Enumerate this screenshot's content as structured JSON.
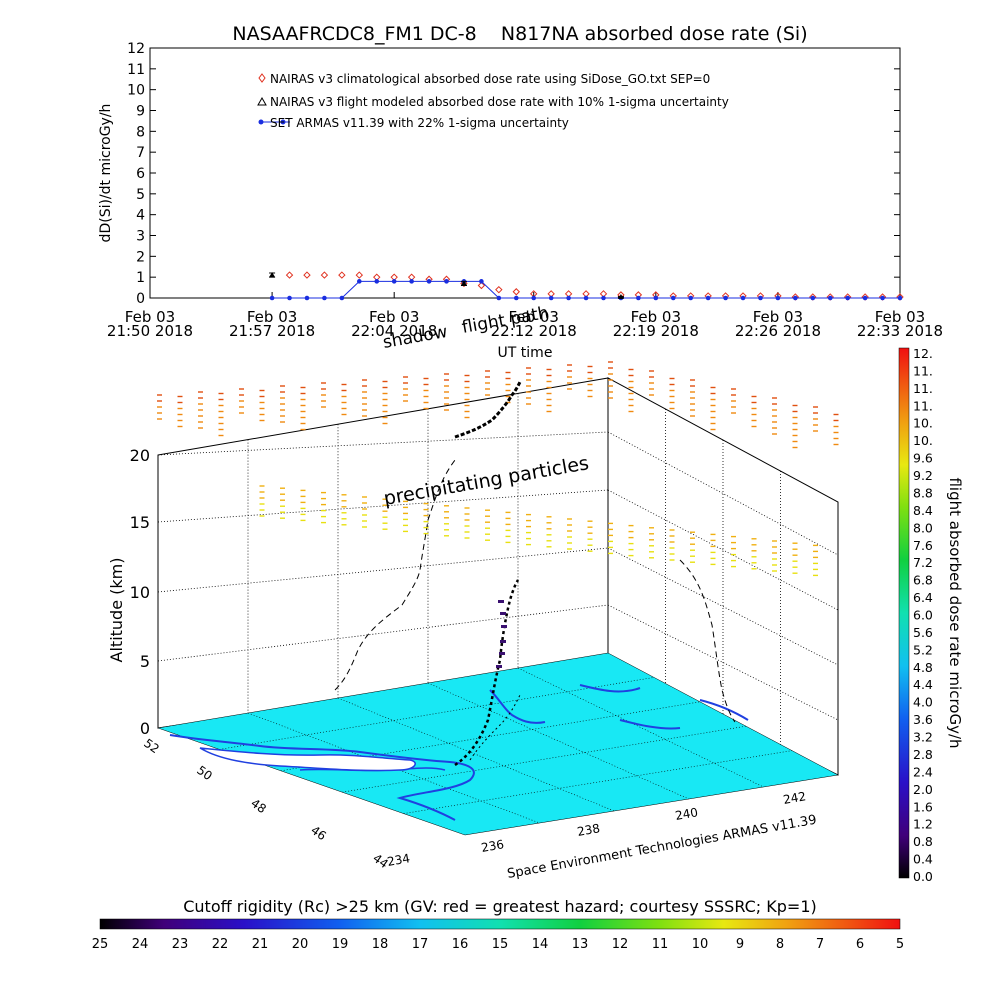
{
  "chart_data": [
    {
      "type": "scatter",
      "title": "NASAAFRCDC8_FM1 DC-8    N817NA absorbed dose rate (Si)",
      "xlabel": "UT time",
      "ylabel": "dD(Si)/dt microGy/h",
      "ylim": [
        0,
        12
      ],
      "y_ticks": [
        "0",
        "1",
        "2",
        "3",
        "4",
        "5",
        "6",
        "7",
        "8",
        "9",
        "10",
        "11",
        "12"
      ],
      "x_ticks": [
        {
          "t": 0,
          "line1": "Feb 03",
          "line2": "21:50 2018"
        },
        {
          "t": 7,
          "line1": "Feb 03",
          "line2": "21:57 2018"
        },
        {
          "t": 14,
          "line1": "Feb 03",
          "line2": "22:04 2018"
        },
        {
          "t": 22,
          "line1": "Feb 03",
          "line2": "22:12 2018"
        },
        {
          "t": 29,
          "line1": "Feb 03",
          "line2": "22:19 2018"
        },
        {
          "t": 36,
          "line1": "Feb 03",
          "line2": "22:26 2018"
        },
        {
          "t": 43,
          "line1": "Feb 03",
          "line2": "22:33 2018"
        }
      ],
      "xlim_minutes_after_2150": [
        0,
        43
      ],
      "legend": [
        {
          "marker": "diamond",
          "color": "#e0301e",
          "label": "NAIRAS v3 climatological absorbed dose rate using SiDose_GO.txt SEP=0"
        },
        {
          "marker": "triangle",
          "color": "#000000",
          "label": "NAIRAS v3 flight modeled absorbed dose rate with 10% 1-sigma uncertainty"
        },
        {
          "marker": "circle",
          "color": "#1a2ee0",
          "label": "SET ARMAS v11.39 with 22% 1-sigma uncertainty"
        }
      ],
      "legend_position": "top-left",
      "series": [
        {
          "name": "NAIRAS v3 climatological absorbed dose rate using SiDose_GO.txt SEP=0",
          "x": [
            8,
            9,
            10,
            11,
            12,
            13,
            14,
            15,
            16,
            17,
            18,
            19,
            20,
            21,
            22,
            23,
            24,
            25,
            26,
            27,
            28,
            29,
            30,
            31,
            32,
            33,
            34,
            35,
            36,
            37,
            38,
            39,
            40,
            41,
            42,
            43
          ],
          "y": [
            1.1,
            1.1,
            1.1,
            1.1,
            1.1,
            1.0,
            1.0,
            1.0,
            0.9,
            0.9,
            0.7,
            0.6,
            0.4,
            0.3,
            0.2,
            0.2,
            0.2,
            0.2,
            0.2,
            0.15,
            0.15,
            0.15,
            0.1,
            0.1,
            0.1,
            0.1,
            0.1,
            0.1,
            0.1,
            0.05,
            0.05,
            0.05,
            0.05,
            0.05,
            0.05,
            0.05
          ]
        },
        {
          "name": "NAIRAS v3 flight modeled absorbed dose rate with 10% 1-sigma uncertainty",
          "x": [
            7,
            18,
            27
          ],
          "y": [
            1.1,
            0.7,
            0.05
          ],
          "err": [
            0.1,
            0.1,
            0.02
          ]
        },
        {
          "name": "SET ARMAS v11.39 with 22% 1-sigma uncertainty",
          "x": [
            7,
            8,
            9,
            10,
            11,
            12,
            13,
            14,
            15,
            16,
            17,
            18,
            19,
            20,
            21,
            22,
            23,
            24,
            25,
            26,
            27,
            28,
            29,
            30,
            31,
            32,
            33,
            34,
            35,
            36,
            37,
            38,
            39,
            40,
            41,
            42,
            43
          ],
          "y": [
            0,
            0,
            0,
            0,
            0,
            0.8,
            0.8,
            0.8,
            0.8,
            0.8,
            0.8,
            0.8,
            0.8,
            0,
            0,
            0,
            0,
            0,
            0,
            0,
            0,
            0,
            0,
            0,
            0,
            0,
            0,
            0,
            0,
            0,
            0,
            0,
            0,
            0,
            0,
            0,
            0
          ]
        }
      ]
    },
    {
      "type": "scatter",
      "title": "",
      "zlabel": "Altitude (km)",
      "z_ticks": [
        "0",
        "5",
        "10",
        "15",
        "20"
      ],
      "lat_ticks": [
        "44",
        "46",
        "48",
        "50",
        "52"
      ],
      "lon_ticks": [
        "234",
        "236",
        "238",
        "240",
        "242"
      ],
      "annotations": [
        "precipitating particles",
        "shadow",
        "flight path"
      ],
      "credit": "Space Environment Technologies ARMAS v11.39",
      "surface_color": "#18e8f4",
      "coast_color": "#2040e0",
      "grid": true
    }
  ],
  "colorbar_dose": {
    "label": "flight absorbed dose rate microGy/h",
    "ticks": [
      "0.0",
      "0.4",
      "0.8",
      "1.2",
      "1.6",
      "2.0",
      "2.4",
      "2.8",
      "3.2",
      "3.6",
      "4.0",
      "4.4",
      "4.8",
      "5.2",
      "5.6",
      "6.0",
      "6.4",
      "6.8",
      "7.2",
      "7.6",
      "8.0",
      "8.4",
      "8.8",
      "9.2",
      "9.6",
      "10.",
      "10.",
      "11.",
      "11.",
      "11.",
      "12."
    ]
  },
  "colorbar_rc": {
    "label": "Cutoff rigidity (Rc) >25 km (GV: red = greatest hazard; courtesy SSSRC; Kp=1)",
    "ticks": [
      "25",
      "24",
      "23",
      "22",
      "21",
      "20",
      "19",
      "18",
      "17",
      "16",
      "15",
      "14",
      "13",
      "12",
      "11",
      "10",
      "9",
      "8",
      "7",
      "6",
      "5"
    ]
  }
}
